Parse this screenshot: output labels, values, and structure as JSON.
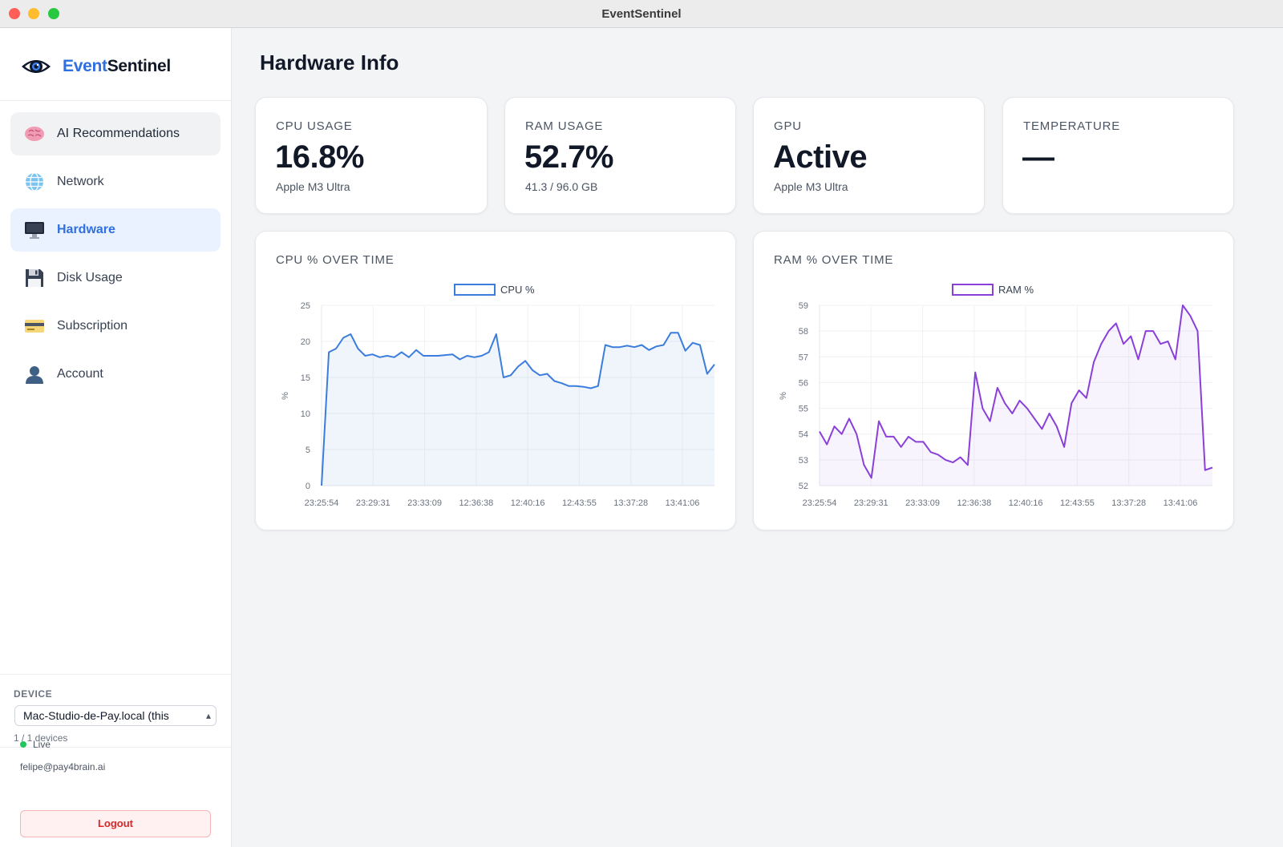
{
  "window": {
    "title": "EventSentinel"
  },
  "brand": {
    "prefix": "Event",
    "suffix": "Sentinel"
  },
  "sidebar": {
    "items": [
      {
        "label": "AI Recommendations",
        "icon": "brain-icon",
        "state": "hover"
      },
      {
        "label": "Network",
        "icon": "globe-icon",
        "state": ""
      },
      {
        "label": "Hardware",
        "icon": "monitor-icon",
        "state": "active"
      },
      {
        "label": "Disk Usage",
        "icon": "floppy-disk-icon",
        "state": ""
      },
      {
        "label": "Subscription",
        "icon": "credit-card-icon",
        "state": ""
      },
      {
        "label": "Account",
        "icon": "user-icon",
        "state": ""
      }
    ]
  },
  "device": {
    "caption": "DEVICE",
    "selected": "Mac-Studio-de-Pay.local (this",
    "count": "1 / 1 devices"
  },
  "status": {
    "live": "Live",
    "email": "felipe@pay4brain.ai",
    "logout": "Logout"
  },
  "page": {
    "title": "Hardware Info"
  },
  "stats": {
    "cpu": {
      "label": "CPU USAGE",
      "value": "16.8%",
      "sub": "Apple M3 Ultra"
    },
    "ram": {
      "label": "RAM USAGE",
      "value": "52.7%",
      "sub": "41.3 / 96.0 GB"
    },
    "gpu": {
      "label": "GPU",
      "value": "Active",
      "sub": "Apple M3 Ultra"
    },
    "temp": {
      "label": "TEMPERATURE",
      "value": "—",
      "sub": ""
    }
  },
  "colors": {
    "accent": "#2f6fe0",
    "cpu_line": "#3b7ddd",
    "ram_line": "#8b3fd9",
    "live": "#22c55e",
    "danger": "#dc2626"
  },
  "chart_data": [
    {
      "type": "line",
      "title": "CPU % OVER TIME",
      "ylabel": "%",
      "ylim": [
        0,
        25
      ],
      "yticks": [
        0,
        5,
        10,
        15,
        20,
        25
      ],
      "xtick_labels": [
        "23:25:54",
        "23:29:31",
        "23:33:09",
        "12:36:38",
        "12:40:16",
        "12:43:55",
        "13:37:28",
        "13:41:06"
      ],
      "series": [
        {
          "name": "CPU %",
          "values": [
            0,
            18.5,
            19,
            20.5,
            21,
            19,
            18,
            18.2,
            17.8,
            18,
            17.8,
            18.5,
            17.8,
            18.8,
            18,
            18,
            18,
            18.1,
            18.2,
            17.5,
            18,
            17.8,
            18,
            18.5,
            21,
            15,
            15.3,
            16.5,
            17.3,
            16,
            15.3,
            15.5,
            14.5,
            14.2,
            13.8,
            13.8,
            13.7,
            13.5,
            13.8,
            19.5,
            19.2,
            19.2,
            19.4,
            19.2,
            19.5,
            18.8,
            19.3,
            19.5,
            21.2,
            21.2,
            18.7,
            19.8,
            19.5,
            15.5,
            16.8
          ]
        }
      ],
      "grid": true,
      "legend": "top-center"
    },
    {
      "type": "line",
      "title": "RAM % OVER TIME",
      "ylabel": "%",
      "ylim": [
        52,
        59
      ],
      "yticks": [
        52,
        53,
        54,
        55,
        56,
        57,
        58,
        59
      ],
      "xtick_labels": [
        "23:25:54",
        "23:29:31",
        "23:33:09",
        "12:36:38",
        "12:40:16",
        "12:43:55",
        "13:37:28",
        "13:41:06"
      ],
      "series": [
        {
          "name": "RAM %",
          "values": [
            54.1,
            53.6,
            54.3,
            54,
            54.6,
            54,
            52.8,
            52.3,
            54.5,
            53.9,
            53.9,
            53.5,
            53.9,
            53.7,
            53.7,
            53.3,
            53.2,
            53,
            52.9,
            53.1,
            52.8,
            56.4,
            55,
            54.5,
            55.8,
            55.2,
            54.8,
            55.3,
            55,
            54.6,
            54.2,
            54.8,
            54.3,
            53.5,
            55.2,
            55.7,
            55.4,
            56.8,
            57.5,
            58,
            58.3,
            57.5,
            57.8,
            56.9,
            58,
            58,
            57.5,
            57.6,
            56.9,
            59,
            58.6,
            58,
            52.6,
            52.7
          ]
        }
      ],
      "grid": true,
      "legend": "top-center"
    }
  ]
}
